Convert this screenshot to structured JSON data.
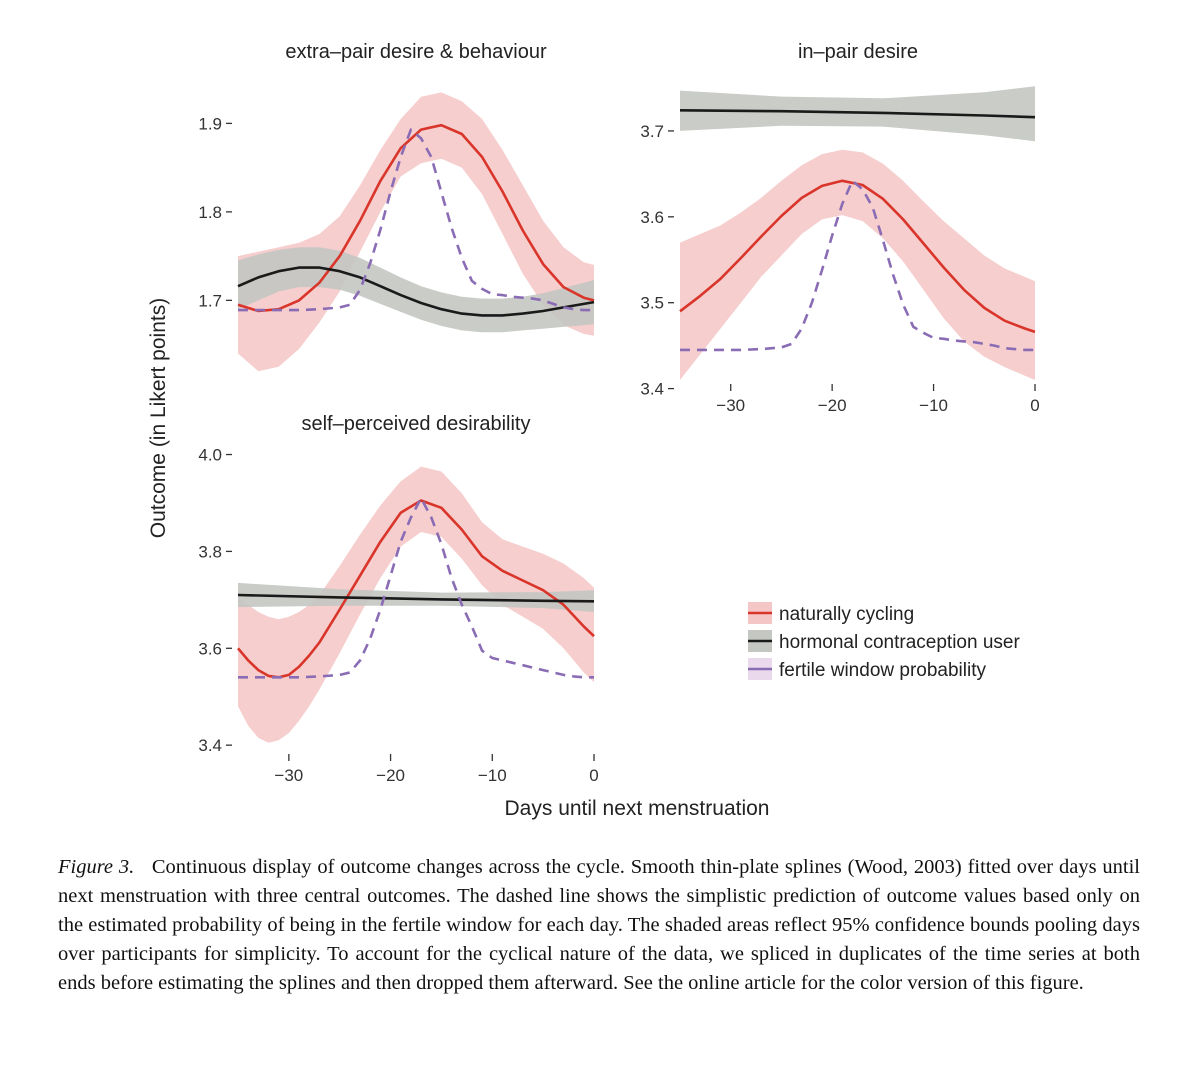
{
  "chart_data": [
    {
      "type": "line",
      "title": "extra–pair desire & behaviour",
      "xlim": [
        -35,
        0
      ],
      "ylim": [
        1.61,
        1.94
      ],
      "yticks": [
        1.7,
        1.8,
        1.9
      ],
      "ytick_labels": [
        "1.7",
        "1.8",
        "1.9"
      ],
      "series": [
        {
          "name": "naturally cycling",
          "color": "#d9352a",
          "x": [
            -35,
            -33,
            -31,
            -29,
            -27,
            -25,
            -23,
            -21,
            -19,
            -17,
            -15,
            -13,
            -11,
            -9,
            -7,
            -5,
            -3,
            -1,
            0
          ],
          "y": [
            1.695,
            1.688,
            1.69,
            1.7,
            1.72,
            1.75,
            1.79,
            1.835,
            1.872,
            1.893,
            1.898,
            1.888,
            1.862,
            1.823,
            1.779,
            1.741,
            1.715,
            1.703,
            1.7
          ],
          "ci_lower": [
            1.64,
            1.62,
            1.625,
            1.645,
            1.675,
            1.71,
            1.755,
            1.8,
            1.84,
            1.855,
            1.86,
            1.85,
            1.82,
            1.775,
            1.73,
            1.695,
            1.672,
            1.662,
            1.66
          ],
          "ci_upper": [
            1.75,
            1.755,
            1.76,
            1.765,
            1.775,
            1.795,
            1.83,
            1.87,
            1.905,
            1.93,
            1.935,
            1.925,
            1.905,
            1.87,
            1.83,
            1.79,
            1.76,
            1.743,
            1.74
          ]
        },
        {
          "name": "hormonal contraception user",
          "color": "#1a1a1a",
          "x": [
            -35,
            -33,
            -31,
            -29,
            -27,
            -25,
            -23,
            -21,
            -19,
            -17,
            -15,
            -13,
            -11,
            -9,
            -7,
            -5,
            -3,
            -1,
            0
          ],
          "y": [
            1.716,
            1.726,
            1.733,
            1.737,
            1.737,
            1.733,
            1.726,
            1.716,
            1.706,
            1.697,
            1.69,
            1.685,
            1.683,
            1.683,
            1.685,
            1.688,
            1.692,
            1.696,
            1.698
          ],
          "ci_lower": [
            1.69,
            1.7,
            1.71,
            1.715,
            1.715,
            1.712,
            1.705,
            1.696,
            1.687,
            1.678,
            1.671,
            1.666,
            1.664,
            1.664,
            1.666,
            1.668,
            1.67,
            1.672,
            1.673
          ],
          "ci_upper": [
            1.745,
            1.752,
            1.757,
            1.76,
            1.76,
            1.756,
            1.748,
            1.737,
            1.726,
            1.716,
            1.709,
            1.704,
            1.702,
            1.702,
            1.704,
            1.708,
            1.714,
            1.72,
            1.723
          ]
        },
        {
          "name": "fertile window probability",
          "color": "#8a6cb5",
          "dashed": true,
          "x": [
            -35,
            -33,
            -31,
            -29,
            -27,
            -25,
            -24,
            -23,
            -22,
            -21,
            -20,
            -19,
            -18,
            -17,
            -16,
            -15,
            -14,
            -13,
            -12,
            -11,
            -10,
            -9,
            -8,
            -7,
            -6,
            -5,
            -4,
            -3,
            -2,
            -1,
            0
          ],
          "y": [
            1.689,
            1.689,
            1.689,
            1.689,
            1.69,
            1.692,
            1.695,
            1.712,
            1.742,
            1.78,
            1.823,
            1.862,
            1.893,
            1.883,
            1.862,
            1.822,
            1.782,
            1.748,
            1.722,
            1.713,
            1.707,
            1.706,
            1.704,
            1.703,
            1.702,
            1.7,
            1.696,
            1.692,
            1.69,
            1.689,
            1.689
          ]
        }
      ]
    },
    {
      "type": "line",
      "title": "in–pair desire",
      "xlim": [
        -35,
        0
      ],
      "ylim": [
        3.41,
        3.75
      ],
      "xticks": [
        -30,
        -20,
        -10,
        0
      ],
      "xtick_labels": [
        "−30",
        "−20",
        "−10",
        "0"
      ],
      "yticks": [
        3.4,
        3.5,
        3.6,
        3.7
      ],
      "ytick_labels": [
        "3.4",
        "3.5",
        "3.6",
        "3.7"
      ],
      "series": [
        {
          "name": "naturally cycling",
          "color": "#d9352a",
          "x": [
            -35,
            -33,
            -31,
            -29,
            -27,
            -25,
            -23,
            -21,
            -19,
            -17,
            -15,
            -13,
            -11,
            -9,
            -7,
            -5,
            -3,
            -1,
            0
          ],
          "y": [
            3.49,
            3.508,
            3.528,
            3.552,
            3.577,
            3.601,
            3.622,
            3.636,
            3.642,
            3.637,
            3.621,
            3.597,
            3.569,
            3.541,
            3.515,
            3.494,
            3.479,
            3.47,
            3.466
          ],
          "ci_lower": [
            3.41,
            3.44,
            3.47,
            3.5,
            3.53,
            3.555,
            3.58,
            3.597,
            3.602,
            3.595,
            3.575,
            3.548,
            3.515,
            3.482,
            3.455,
            3.437,
            3.425,
            3.415,
            3.41
          ],
          "ci_upper": [
            3.57,
            3.58,
            3.59,
            3.605,
            3.622,
            3.642,
            3.66,
            3.673,
            3.678,
            3.675,
            3.662,
            3.642,
            3.618,
            3.595,
            3.575,
            3.555,
            3.54,
            3.53,
            3.525
          ]
        },
        {
          "name": "hormonal contraception user",
          "color": "#1a1a1a",
          "x": [
            -35,
            -25,
            -15,
            -5,
            0
          ],
          "y": [
            3.724,
            3.723,
            3.721,
            3.718,
            3.716
          ],
          "ci_lower": [
            3.7,
            3.706,
            3.705,
            3.695,
            3.688
          ],
          "ci_upper": [
            3.747,
            3.74,
            3.738,
            3.745,
            3.752
          ]
        },
        {
          "name": "fertile window probability",
          "color": "#8a6cb5",
          "dashed": true,
          "x": [
            -35,
            -33,
            -31,
            -29,
            -27,
            -25,
            -24,
            -23,
            -22,
            -21,
            -20,
            -19,
            -18,
            -17,
            -16,
            -15,
            -14,
            -13,
            -12,
            -11,
            -10,
            -9,
            -8,
            -7,
            -6,
            -5,
            -4,
            -3,
            -2,
            -1,
            0
          ],
          "y": [
            3.445,
            3.445,
            3.445,
            3.445,
            3.446,
            3.448,
            3.452,
            3.47,
            3.5,
            3.538,
            3.578,
            3.615,
            3.642,
            3.632,
            3.611,
            3.573,
            3.533,
            3.498,
            3.472,
            3.465,
            3.459,
            3.458,
            3.456,
            3.455,
            3.454,
            3.452,
            3.45,
            3.447,
            3.446,
            3.445,
            3.445
          ]
        }
      ]
    },
    {
      "type": "line",
      "title": "self–perceived desirability",
      "xlim": [
        -35,
        0
      ],
      "ylim": [
        3.39,
        4.03
      ],
      "xticks": [
        -30,
        -20,
        -10,
        0
      ],
      "xtick_labels": [
        "−30",
        "−20",
        "−10",
        "0"
      ],
      "yticks": [
        3.4,
        3.6,
        3.8,
        4.0
      ],
      "ytick_labels": [
        "3.4",
        "3.6",
        "3.8",
        "4.0"
      ],
      "series": [
        {
          "name": "naturally cycling",
          "color": "#d9352a",
          "x": [
            -35,
            -34,
            -33,
            -32,
            -31,
            -30,
            -29,
            -28,
            -27,
            -25,
            -23,
            -21,
            -19,
            -17,
            -15,
            -13,
            -11,
            -9,
            -7,
            -5,
            -3,
            -1,
            0
          ],
          "y": [
            3.6,
            3.575,
            3.555,
            3.543,
            3.54,
            3.545,
            3.562,
            3.585,
            3.612,
            3.68,
            3.75,
            3.82,
            3.88,
            3.905,
            3.89,
            3.845,
            3.79,
            3.76,
            3.74,
            3.72,
            3.69,
            3.645,
            3.625
          ],
          "ci_lower": [
            3.48,
            3.44,
            3.415,
            3.405,
            3.41,
            3.425,
            3.45,
            3.48,
            3.515,
            3.59,
            3.67,
            3.745,
            3.81,
            3.84,
            3.83,
            3.785,
            3.73,
            3.69,
            3.665,
            3.64,
            3.6,
            3.55,
            3.53
          ],
          "ci_upper": [
            3.705,
            3.69,
            3.675,
            3.665,
            3.66,
            3.665,
            3.675,
            3.69,
            3.71,
            3.77,
            3.835,
            3.895,
            3.945,
            3.975,
            3.965,
            3.92,
            3.86,
            3.825,
            3.81,
            3.795,
            3.775,
            3.745,
            3.725
          ]
        },
        {
          "name": "hormonal contraception user",
          "color": "#1a1a1a",
          "x": [
            -35,
            -25,
            -15,
            -5,
            0
          ],
          "y": [
            3.71,
            3.705,
            3.701,
            3.698,
            3.697
          ],
          "ci_lower": [
            3.685,
            3.688,
            3.688,
            3.683,
            3.675
          ],
          "ci_upper": [
            3.735,
            3.722,
            3.715,
            3.716,
            3.72
          ]
        },
        {
          "name": "fertile window probability",
          "color": "#8a6cb5",
          "dashed": true,
          "x": [
            -35,
            -33,
            -31,
            -29,
            -27,
            -25,
            -24,
            -23,
            -22,
            -21,
            -20,
            -19,
            -18,
            -17,
            -16,
            -15,
            -14,
            -13,
            -12,
            -11,
            -10,
            -9,
            -8,
            -7,
            -6,
            -5,
            -4,
            -3,
            -2,
            -1,
            0
          ],
          "y": [
            3.54,
            3.54,
            3.54,
            3.54,
            3.542,
            3.545,
            3.55,
            3.575,
            3.62,
            3.68,
            3.75,
            3.82,
            3.87,
            3.91,
            3.87,
            3.815,
            3.745,
            3.69,
            3.645,
            3.595,
            3.58,
            3.575,
            3.57,
            3.565,
            3.56,
            3.555,
            3.55,
            3.545,
            3.542,
            3.54,
            3.54
          ]
        }
      ]
    }
  ],
  "axes": {
    "ylabel": "Outcome (in Likert points)",
    "xlabel": "Days until next menstruation"
  },
  "legend": {
    "placement": "bottom-right",
    "items": [
      {
        "label": "naturally cycling",
        "color": "#d9352a",
        "band": "#f5c6c6"
      },
      {
        "label": "hormonal contraception user",
        "color": "#1a1a1a",
        "band": "#c4c7c2"
      },
      {
        "label": "fertile window probability",
        "color": "#8a6cb5",
        "band": "#ead8ec"
      }
    ]
  },
  "caption": {
    "label": "Figure 3.",
    "text": "Continuous display of outcome changes across the cycle. Smooth thin-plate splines (Wood, 2003) fitted over days until next menstruation with three central outcomes. The dashed line shows the simplistic prediction of outcome values based only on the estimated probability of being in the fertile window for each day. The shaded areas reflect 95% confidence bounds pooling days over participants for simplicity. To account for the cyclical nature of the data, we spliced in duplicates of the time series at both ends before estimating the splines and then dropped them afterward. See the online article for the color version of this figure."
  },
  "colors": {
    "nc_band": "#f5c6c6",
    "hc_band": "#c4c7c2",
    "nc_line": "#d9352a",
    "hc_line": "#1a1a1a",
    "fw_line": "#8a6cb5"
  }
}
